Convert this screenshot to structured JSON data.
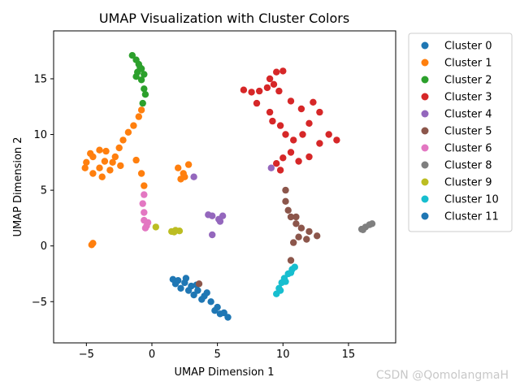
{
  "chart_data": {
    "type": "scatter",
    "title": "UMAP Visualization with Cluster Colors",
    "xlabel": "UMAP Dimension 1",
    "ylabel": "UMAP Dimension 2",
    "xlim": [
      -7.5,
      18.6
    ],
    "ylim": [
      -8.7,
      19.3
    ],
    "xticks": [
      -5,
      0,
      5,
      10,
      15
    ],
    "yticks": [
      -5,
      0,
      5,
      10,
      15
    ],
    "grid": false,
    "legend_position": "outside-right",
    "series": [
      {
        "name": "Cluster 0",
        "color": "#1f77b4",
        "points": [
          [
            2.0,
            -3.1
          ],
          [
            2.5,
            -3.3
          ],
          [
            3.0,
            -3.6
          ],
          [
            3.5,
            -4.0
          ],
          [
            4.0,
            -4.5
          ],
          [
            4.5,
            -5.0
          ],
          [
            5.0,
            -5.5
          ],
          [
            5.5,
            -6.0
          ],
          [
            5.8,
            -6.4
          ],
          [
            1.8,
            -3.4
          ],
          [
            2.8,
            -4.0
          ],
          [
            3.8,
            -4.8
          ],
          [
            4.8,
            -5.8
          ],
          [
            2.2,
            -3.8
          ],
          [
            3.2,
            -4.4
          ],
          [
            1.6,
            -3.0
          ],
          [
            2.6,
            -2.9
          ],
          [
            3.4,
            -3.5
          ],
          [
            4.2,
            -4.2
          ],
          [
            5.2,
            -6.1
          ]
        ]
      },
      {
        "name": "Cluster 1",
        "color": "#ff7f0e",
        "points": [
          [
            -5.0,
            7.5
          ],
          [
            -4.5,
            8.0
          ],
          [
            -4.0,
            7.0
          ],
          [
            -3.5,
            8.5
          ],
          [
            -3.0,
            7.5
          ],
          [
            -2.5,
            8.8
          ],
          [
            -4.5,
            6.5
          ],
          [
            -3.8,
            6.2
          ],
          [
            -2.2,
            9.5
          ],
          [
            -1.8,
            10.2
          ],
          [
            -1.4,
            10.8
          ],
          [
            -1.0,
            11.6
          ],
          [
            -0.8,
            12.2
          ],
          [
            -4.7,
            8.3
          ],
          [
            -3.2,
            6.8
          ],
          [
            -2.8,
            8.0
          ],
          [
            -4.0,
            8.6
          ],
          [
            -5.1,
            7.0
          ],
          [
            -3.6,
            7.6
          ],
          [
            -2.4,
            7.2
          ],
          [
            -1.2,
            7.7
          ],
          [
            -0.8,
            6.5
          ],
          [
            -0.6,
            5.4
          ],
          [
            -4.6,
            0.1
          ],
          [
            -4.5,
            0.25
          ],
          [
            2.0,
            7.0
          ],
          [
            2.4,
            6.5
          ],
          [
            2.8,
            7.3
          ],
          [
            2.2,
            6.0
          ],
          [
            2.5,
            6.2
          ]
        ]
      },
      {
        "name": "Cluster 2",
        "color": "#2ca02c",
        "points": [
          [
            -1.5,
            17.1
          ],
          [
            -1.2,
            16.7
          ],
          [
            -1.0,
            16.3
          ],
          [
            -0.8,
            15.9
          ],
          [
            -0.6,
            15.4
          ],
          [
            -1.2,
            15.2
          ],
          [
            -0.8,
            14.9
          ],
          [
            -0.6,
            14.1
          ],
          [
            -0.5,
            13.6
          ],
          [
            -0.7,
            12.8
          ],
          [
            -1.1,
            15.6
          ],
          [
            -0.9,
            16.0
          ]
        ]
      },
      {
        "name": "Cluster 3",
        "color": "#d62728",
        "points": [
          [
            7.0,
            14.0
          ],
          [
            7.6,
            13.8
          ],
          [
            8.2,
            13.9
          ],
          [
            8.8,
            14.2
          ],
          [
            9.0,
            15.0
          ],
          [
            9.5,
            15.6
          ],
          [
            10.0,
            15.7
          ],
          [
            9.3,
            14.5
          ],
          [
            9.7,
            13.9
          ],
          [
            9.0,
            12.0
          ],
          [
            9.2,
            11.2
          ],
          [
            9.8,
            10.8
          ],
          [
            10.2,
            10.0
          ],
          [
            10.8,
            9.5
          ],
          [
            11.5,
            10.0
          ],
          [
            12.0,
            11.0
          ],
          [
            11.4,
            12.3
          ],
          [
            12.3,
            12.9
          ],
          [
            12.8,
            12.0
          ],
          [
            13.5,
            10.0
          ],
          [
            14.1,
            9.5
          ],
          [
            12.8,
            9.2
          ],
          [
            10.6,
            8.4
          ],
          [
            10.0,
            7.9
          ],
          [
            9.5,
            7.4
          ],
          [
            9.8,
            6.8
          ],
          [
            11.2,
            7.6
          ],
          [
            12.0,
            8.0
          ],
          [
            10.6,
            13.0
          ],
          [
            8.0,
            12.8
          ]
        ]
      },
      {
        "name": "Cluster 4",
        "color": "#9467bd",
        "points": [
          [
            3.2,
            6.2
          ],
          [
            4.3,
            2.8
          ],
          [
            4.6,
            2.7
          ],
          [
            5.1,
            2.4
          ],
          [
            5.4,
            2.7
          ],
          [
            5.2,
            2.2
          ],
          [
            4.6,
            1.0
          ],
          [
            9.1,
            7.0
          ]
        ]
      },
      {
        "name": "Cluster 5",
        "color": "#8c564b",
        "points": [
          [
            10.2,
            5.0
          ],
          [
            10.2,
            4.0
          ],
          [
            10.4,
            3.2
          ],
          [
            10.6,
            2.6
          ],
          [
            11.0,
            2.0
          ],
          [
            11.4,
            1.6
          ],
          [
            12.0,
            1.3
          ],
          [
            12.6,
            0.9
          ],
          [
            11.2,
            0.8
          ],
          [
            10.8,
            0.3
          ],
          [
            11.8,
            0.6
          ],
          [
            11.0,
            2.6
          ],
          [
            10.6,
            -1.3
          ],
          [
            3.6,
            -3.4
          ]
        ]
      },
      {
        "name": "Cluster 6",
        "color": "#e377c2",
        "points": [
          [
            -0.6,
            4.6
          ],
          [
            -0.7,
            3.8
          ],
          [
            -0.6,
            3.0
          ],
          [
            -0.6,
            2.3
          ],
          [
            -0.4,
            1.8
          ],
          [
            -0.5,
            1.6
          ],
          [
            -0.3,
            2.1
          ]
        ]
      },
      {
        "name": "Cluster 8",
        "color": "#7f7f7f",
        "points": [
          [
            16.0,
            1.5
          ],
          [
            16.3,
            1.7
          ],
          [
            16.6,
            1.9
          ],
          [
            16.8,
            2.0
          ],
          [
            16.1,
            1.45
          ]
        ]
      },
      {
        "name": "Cluster 9",
        "color": "#bcbd22",
        "points": [
          [
            1.5,
            1.3
          ],
          [
            1.8,
            1.4
          ],
          [
            2.1,
            1.35
          ],
          [
            0.3,
            1.7
          ],
          [
            1.7,
            1.25
          ]
        ]
      },
      {
        "name": "Cluster 10",
        "color": "#17becf",
        "points": [
          [
            9.5,
            -4.3
          ],
          [
            9.7,
            -3.8
          ],
          [
            9.9,
            -3.3
          ],
          [
            10.1,
            -2.9
          ],
          [
            10.4,
            -2.5
          ],
          [
            10.7,
            -2.1
          ],
          [
            10.9,
            -1.9
          ],
          [
            10.6,
            -2.4
          ],
          [
            10.2,
            -3.2
          ],
          [
            9.8,
            -4.0
          ]
        ]
      },
      {
        "name": "Cluster 11",
        "color": "#1f77b4",
        "points": []
      }
    ]
  }
}
